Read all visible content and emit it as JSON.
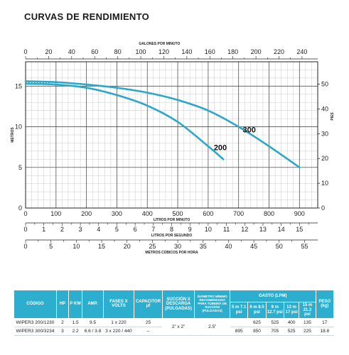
{
  "title": "CURVAS DE RENDIMIENTO",
  "chart_data": {
    "type": "line",
    "x_primary": {
      "label": "LITROS POR MINUTO",
      "ticks": [
        0,
        100,
        200,
        300,
        400,
        500,
        600,
        700,
        800,
        900
      ],
      "range": [
        0,
        960
      ]
    },
    "x_top": {
      "label": "GALONES POR MINUTO",
      "ticks": [
        0,
        20,
        40,
        60,
        80,
        100,
        120,
        140,
        160,
        180,
        200,
        220,
        240
      ]
    },
    "x_lps": {
      "label": "LITROS POR SEGUNDO",
      "ticks": [
        0,
        1,
        2,
        3,
        4,
        5,
        6,
        7,
        8,
        9,
        10,
        11,
        12,
        13,
        14,
        15
      ]
    },
    "x_m3h": {
      "label": "METROS CÚBICOS POR HORA",
      "ticks": [
        0,
        5,
        10,
        15,
        20,
        25,
        30,
        35,
        40,
        45,
        50,
        55
      ]
    },
    "y_left": {
      "label": "METROS",
      "ticks": [
        0,
        5,
        10,
        15
      ],
      "range": [
        0,
        18
      ]
    },
    "y_right": {
      "label": "PIES",
      "ticks": [
        0,
        10,
        20,
        30,
        40,
        50
      ]
    },
    "grid": true,
    "series": [
      {
        "name": "200",
        "color": "#2ba7c9",
        "points": [
          [
            0,
            15.3
          ],
          [
            100,
            15.2
          ],
          [
            200,
            14.8
          ],
          [
            300,
            13.9
          ],
          [
            400,
            12.6
          ],
          [
            500,
            10.6
          ],
          [
            600,
            7.6
          ],
          [
            650,
            6
          ]
        ]
      },
      {
        "name": "300",
        "color": "#2ba7c9",
        "points": [
          [
            0,
            15.6
          ],
          [
            100,
            15.5
          ],
          [
            200,
            15.2
          ],
          [
            300,
            14.8
          ],
          [
            400,
            14.2
          ],
          [
            500,
            13.3
          ],
          [
            600,
            12
          ],
          [
            700,
            10
          ],
          [
            800,
            7.6
          ],
          [
            900,
            5
          ]
        ]
      }
    ]
  },
  "table": {
    "headers": {
      "codigo": "CÓDIGO",
      "hp": "HP",
      "p_kw": "P KW",
      "amp": "AMP.",
      "fases": "FASES X VOLTS",
      "capacitor": "CAPACITOR µf",
      "succion": "SUCCIÓN X DESCARGA (PULGADAS)",
      "diametro": "DIÁMETRO MÍNIMO RECOMENDADO PARA TUBERÍA DE SUCCIÓN (PULGADAS)",
      "gasto": "GASTO (LPM)",
      "g5": "5 m 7.1 psi",
      "g6": "6 m 8.5 psi",
      "g9": "9 m 12.7 psi",
      "g12": "12 m 17 psi",
      "g15": "15 m 21.3 psi",
      "peso": "PESO (kg)"
    },
    "rows": [
      {
        "codigo": "WIPER3 200/1230",
        "hp": "2",
        "p_kw": "1.5",
        "amp": "9.5",
        "fases": "1 x 220",
        "capacitor": "25",
        "succion": "2” x 2”",
        "diametro": "2.5”",
        "g5": "",
        "g6": "625",
        "g9": "525",
        "g12": "400",
        "g15": "135",
        "peso": "17"
      },
      {
        "codigo": "WIPER3 300/3234",
        "hp": "3",
        "p_kw": "2.2",
        "amp": "6.6 / 3.8",
        "fases": "3 x 220 / 440",
        "capacitor": "--",
        "succion": "",
        "diametro": "",
        "g5": "895",
        "g6": "850",
        "g9": "705",
        "g12": "525",
        "g15": "225",
        "peso": "18.8"
      }
    ]
  }
}
